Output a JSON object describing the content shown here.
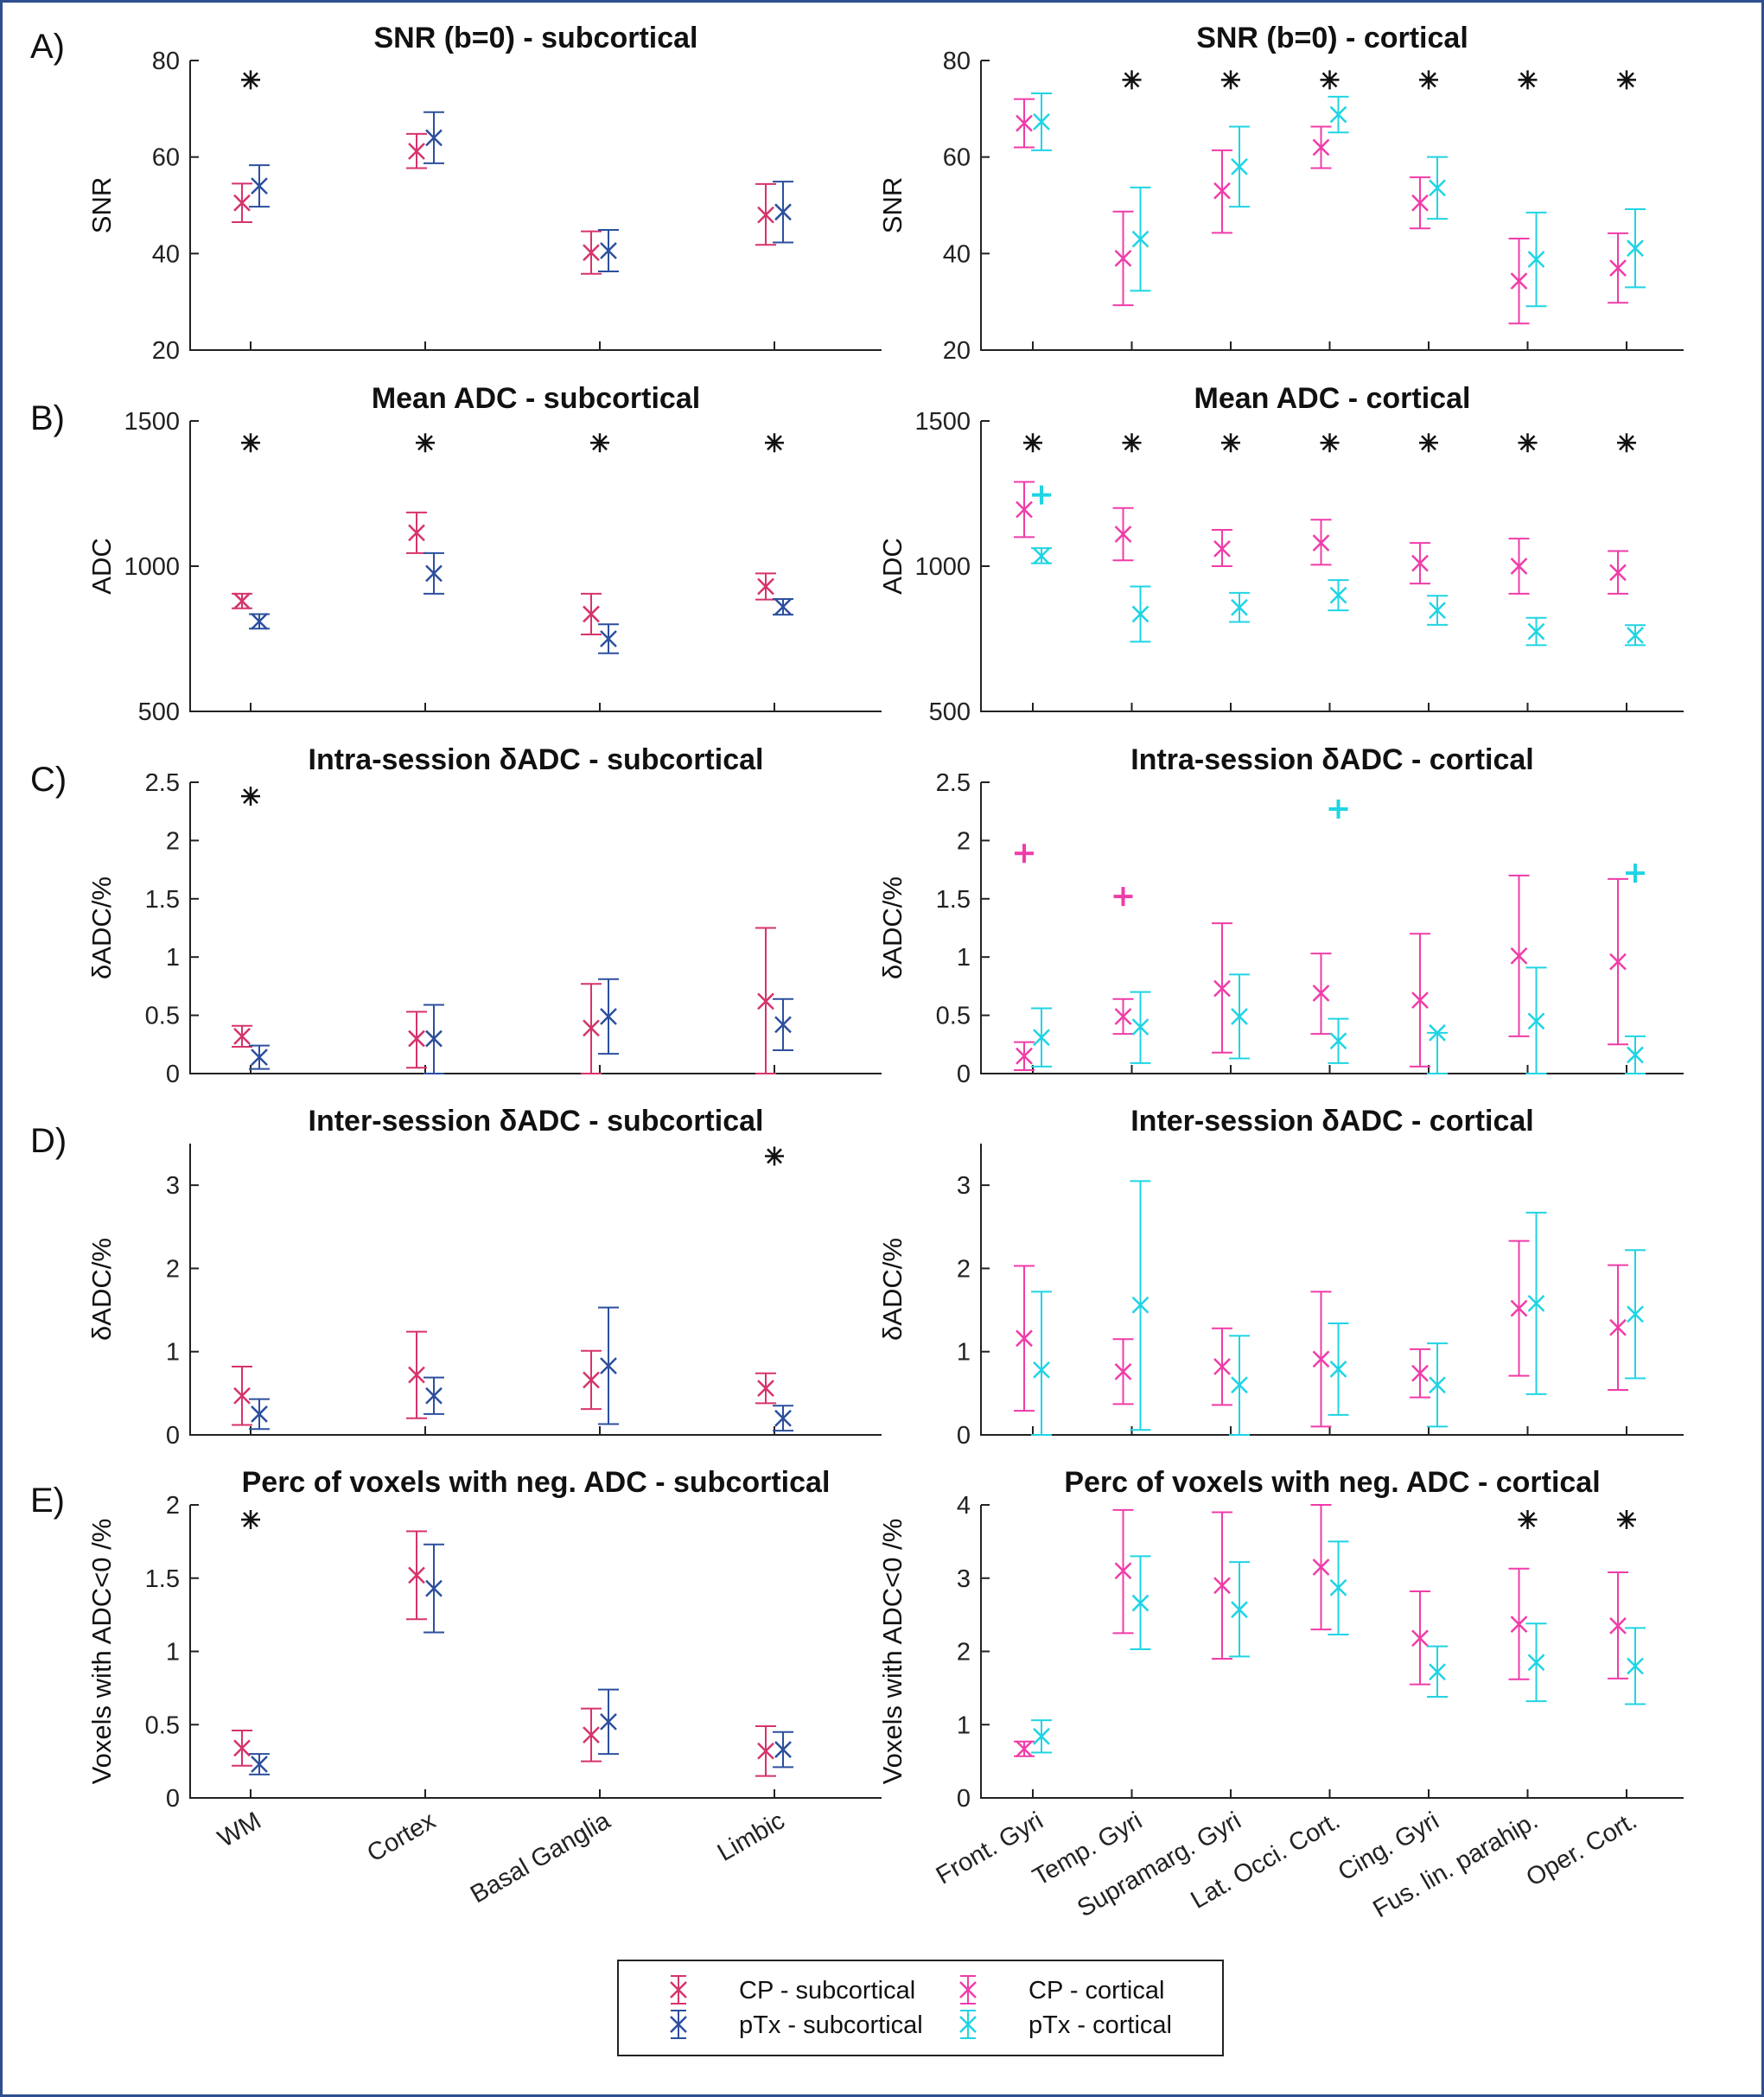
{
  "colors": {
    "cp_sub": "#d6336c",
    "ptx_sub": "#2c4f9e",
    "cp_cort": "#f03ca8",
    "ptx_cort": "#1fd4e4"
  },
  "panel_labels": [
    "A)",
    "B)",
    "C)",
    "D)",
    "E)"
  ],
  "legend": [
    {
      "label": "CP - subcortical",
      "color_key": "cp_sub"
    },
    {
      "label": "pTx - subcortical",
      "color_key": "ptx_sub"
    },
    {
      "label": "CP - cortical",
      "color_key": "cp_cort"
    },
    {
      "label": "pTx - cortical",
      "color_key": "ptx_cort"
    }
  ],
  "chart_data": [
    {
      "type": "errorbar",
      "title": "SNR (b=0) - subcortical",
      "ylabel": "SNR",
      "ylim": [
        20,
        80
      ],
      "yticks": [
        20,
        40,
        60,
        80
      ],
      "categories": [
        "WM",
        "Cortex",
        "Basal Ganglia",
        "Limbic"
      ],
      "series": [
        {
          "name": "CP - subcortical",
          "color_key": "cp_sub",
          "mean": [
            50.5,
            61.2,
            40.2,
            48
          ],
          "lower": [
            46.5,
            57.7,
            35.8,
            41.8
          ],
          "upper": [
            54.5,
            64.8,
            44.6,
            54.4
          ]
        },
        {
          "name": "pTx - subcortical",
          "color_key": "ptx_sub",
          "mean": [
            54,
            64,
            40.6,
            48.6
          ],
          "lower": [
            49.7,
            58.7,
            36.3,
            42.3
          ],
          "upper": [
            58.3,
            69.3,
            44.9,
            54.9
          ]
        }
      ],
      "significance": [
        76,
        null,
        null,
        null
      ],
      "outliers": []
    },
    {
      "type": "errorbar",
      "title": "SNR (b=0) - cortical",
      "ylabel": "SNR",
      "ylim": [
        20,
        80
      ],
      "yticks": [
        20,
        40,
        60,
        80
      ],
      "categories": [
        "Front. Gyri",
        "Temp. Gyri",
        "Supramarg. Gyri",
        "Lat. Occi. Cort.",
        "Cing. Gyri",
        "Fus. lin. parahip.",
        "Oper. Cort."
      ],
      "series": [
        {
          "name": "CP - cortical",
          "color_key": "cp_cort",
          "mean": [
            67,
            39,
            53,
            62,
            50.5,
            34.3,
            37
          ],
          "lower": [
            62,
            29.3,
            44.3,
            57.7,
            45.2,
            25.5,
            29.8
          ],
          "upper": [
            72,
            48.7,
            61.4,
            66.3,
            55.8,
            43.1,
            44.2
          ]
        },
        {
          "name": "pTx - cortical",
          "color_key": "ptx_cort",
          "mean": [
            67.3,
            43,
            58,
            68.8,
            53.6,
            38.8,
            41.1
          ],
          "lower": [
            61.4,
            32.3,
            49.7,
            65.1,
            47.2,
            29.1,
            33
          ],
          "upper": [
            73.2,
            53.7,
            66.3,
            72.5,
            60,
            48.5,
            49.2
          ]
        }
      ],
      "significance": [
        null,
        76,
        76,
        76,
        76,
        76,
        76
      ],
      "outliers": []
    },
    {
      "type": "errorbar",
      "title": "Mean ADC - subcortical",
      "ylabel": "ADC",
      "ylim": [
        500,
        1500
      ],
      "yticks": [
        500,
        1000,
        1500
      ],
      "categories": [
        "WM",
        "Cortex",
        "Basal Ganglia",
        "Limbic"
      ],
      "series": [
        {
          "name": "CP - subcortical",
          "color_key": "cp_sub",
          "mean": [
            880,
            1115,
            835,
            930
          ],
          "lower": [
            855,
            1045,
            765,
            885
          ],
          "upper": [
            905,
            1185,
            905,
            975
          ]
        },
        {
          "name": "pTx - subcortical",
          "color_key": "ptx_sub",
          "mean": [
            810,
            975,
            750,
            860
          ],
          "lower": [
            785,
            905,
            700,
            833
          ],
          "upper": [
            835,
            1045,
            800,
            887
          ]
        }
      ],
      "significance": [
        1425,
        1425,
        1425,
        1425
      ],
      "outliers": []
    },
    {
      "type": "errorbar",
      "title": "Mean ADC - cortical",
      "ylabel": "ADC",
      "ylim": [
        500,
        1500
      ],
      "yticks": [
        500,
        1000,
        1500
      ],
      "categories": [
        "Front. Gyri",
        "Temp. Gyri",
        "Supramarg. Gyri",
        "Lat. Occi. Cort.",
        "Cing. Gyri",
        "Fus. lin. parahip.",
        "Oper. Cort."
      ],
      "series": [
        {
          "name": "CP - cortical",
          "color_key": "cp_cort",
          "mean": [
            1195,
            1110,
            1060,
            1080,
            1010,
            1000,
            978
          ],
          "lower": [
            1100,
            1020,
            1000,
            1005,
            940,
            905,
            905
          ],
          "upper": [
            1290,
            1200,
            1125,
            1160,
            1080,
            1095,
            1052
          ]
        },
        {
          "name": "pTx - cortical",
          "color_key": "ptx_cort",
          "mean": [
            1035,
            835,
            858,
            900,
            848,
            775,
            762
          ],
          "lower": [
            1010,
            740,
            808,
            848,
            798,
            728,
            728
          ],
          "upper": [
            1062,
            930,
            908,
            952,
            898,
            822,
            797
          ]
        }
      ],
      "significance": [
        1425,
        1425,
        1425,
        1425,
        1425,
        1425,
        1425
      ],
      "outliers": [
        {
          "category": 0,
          "series": 1,
          "value": 1245
        }
      ]
    },
    {
      "type": "errorbar",
      "title": "Intra-session δADC - subcortical",
      "ylabel": "δADC/%",
      "ylim": [
        0,
        2.5
      ],
      "yticks": [
        0,
        0.5,
        1,
        1.5,
        2,
        2.5
      ],
      "categories": [
        "WM",
        "Cortex",
        "Basal Ganglia",
        "Limbic"
      ],
      "series": [
        {
          "name": "CP - subcortical",
          "color_key": "cp_sub",
          "mean": [
            0.32,
            0.3,
            0.39,
            0.62
          ],
          "lower": [
            0.23,
            0.05,
            0,
            0
          ],
          "upper": [
            0.41,
            0.53,
            0.77,
            1.25
          ]
        },
        {
          "name": "pTx - subcortical",
          "color_key": "ptx_sub",
          "mean": [
            0.14,
            0.3,
            0.49,
            0.42
          ],
          "lower": [
            0.04,
            0,
            0.17,
            0.2
          ],
          "upper": [
            0.24,
            0.59,
            0.81,
            0.64
          ]
        }
      ],
      "significance": [
        2.38,
        null,
        null,
        null
      ],
      "outliers": []
    },
    {
      "type": "errorbar",
      "title": "Intra-session δADC - cortical",
      "ylabel": "δADC/%",
      "ylim": [
        0,
        2.5
      ],
      "yticks": [
        0,
        0.5,
        1,
        1.5,
        2,
        2.5
      ],
      "categories": [
        "Front. Gyri",
        "Temp. Gyri",
        "Supramarg. Gyri",
        "Lat. Occi. Cort.",
        "Cing. Gyri",
        "Fus. lin. parahip.",
        "Oper. Cort."
      ],
      "series": [
        {
          "name": "CP - cortical",
          "color_key": "cp_cort",
          "mean": [
            0.15,
            0.49,
            0.73,
            0.69,
            0.63,
            1.01,
            0.96
          ],
          "lower": [
            0.03,
            0.34,
            0.18,
            0.34,
            0.06,
            0.32,
            0.25
          ],
          "upper": [
            0.27,
            0.64,
            1.29,
            1.03,
            1.2,
            1.7,
            1.67
          ]
        },
        {
          "name": "pTx - cortical",
          "color_key": "ptx_cort",
          "mean": [
            0.31,
            0.4,
            0.49,
            0.28,
            0.35,
            0.45,
            0.16
          ],
          "lower": [
            0.06,
            0.09,
            0.13,
            0.09,
            0,
            0,
            0
          ],
          "upper": [
            0.56,
            0.7,
            0.85,
            0.47,
            0.35,
            0.91,
            0.32
          ]
        }
      ],
      "significance": [
        null,
        null,
        null,
        null,
        null,
        null,
        null
      ],
      "outliers": [
        {
          "category": 0,
          "series": 0,
          "value": 1.89
        },
        {
          "category": 1,
          "series": 0,
          "value": 1.52
        },
        {
          "category": 3,
          "series": 1,
          "value": 2.27
        },
        {
          "category": 6,
          "series": 1,
          "value": 1.72
        }
      ]
    },
    {
      "type": "errorbar",
      "title": "Inter-session δADC - subcortical",
      "ylabel": "δADC/%",
      "ylim": [
        0,
        3.5
      ],
      "yticks": [
        0,
        1,
        2,
        3
      ],
      "categories": [
        "WM",
        "Cortex",
        "Basal Ganglia",
        "Limbic"
      ],
      "series": [
        {
          "name": "CP - subcortical",
          "color_key": "cp_sub",
          "mean": [
            0.47,
            0.72,
            0.66,
            0.56
          ],
          "lower": [
            0.12,
            0.2,
            0.31,
            0.38
          ],
          "upper": [
            0.82,
            1.24,
            1.01,
            0.74
          ]
        },
        {
          "name": "pTx - subcortical",
          "color_key": "ptx_sub",
          "mean": [
            0.25,
            0.47,
            0.83,
            0.2
          ],
          "lower": [
            0.07,
            0.25,
            0.13,
            0.05
          ],
          "upper": [
            0.43,
            0.69,
            1.53,
            0.35
          ]
        }
      ],
      "significance": [
        null,
        null,
        null,
        3.35
      ],
      "outliers": []
    },
    {
      "type": "errorbar",
      "title": "Inter-session δADC - cortical",
      "ylabel": "δADC/%",
      "ylim": [
        0,
        3.5
      ],
      "yticks": [
        0,
        1,
        2,
        3
      ],
      "categories": [
        "Front. Gyri",
        "Temp. Gyri",
        "Supramarg. Gyri",
        "Lat. Occi. Cort.",
        "Cing. Gyri",
        "Fus. lin. parahip.",
        "Oper. Cort."
      ],
      "series": [
        {
          "name": "CP - cortical",
          "color_key": "cp_cort",
          "mean": [
            1.16,
            0.76,
            0.82,
            0.91,
            0.74,
            1.52,
            1.29
          ],
          "lower": [
            0.29,
            0.37,
            0.36,
            0.1,
            0.45,
            0.71,
            0.54
          ],
          "upper": [
            2.03,
            1.15,
            1.28,
            1.72,
            1.03,
            2.33,
            2.04
          ]
        },
        {
          "name": "pTx - cortical",
          "color_key": "ptx_cort",
          "mean": [
            0.78,
            1.56,
            0.6,
            0.79,
            0.6,
            1.58,
            1.45
          ],
          "lower": [
            0,
            0.06,
            0,
            0.24,
            0.1,
            0.49,
            0.68
          ],
          "upper": [
            1.72,
            3.05,
            1.19,
            1.34,
            1.1,
            2.67,
            2.22
          ]
        }
      ],
      "significance": [
        null,
        null,
        null,
        null,
        null,
        null,
        null
      ],
      "outliers": []
    },
    {
      "type": "errorbar",
      "title": "Perc of voxels with neg. ADC - subcortical",
      "ylabel": "Voxels with ADC<0 /%",
      "ylim": [
        0,
        2
      ],
      "yticks": [
        0,
        0.5,
        1,
        1.5,
        2
      ],
      "categories": [
        "WM",
        "Cortex",
        "Basal Ganglia",
        "Limbic"
      ],
      "series": [
        {
          "name": "CP - subcortical",
          "color_key": "cp_sub",
          "mean": [
            0.34,
            1.52,
            0.43,
            0.32
          ],
          "lower": [
            0.22,
            1.22,
            0.25,
            0.15
          ],
          "upper": [
            0.46,
            1.82,
            0.61,
            0.49
          ]
        },
        {
          "name": "pTx - subcortical",
          "color_key": "ptx_sub",
          "mean": [
            0.23,
            1.43,
            0.52,
            0.33
          ],
          "lower": [
            0.16,
            1.13,
            0.3,
            0.21
          ],
          "upper": [
            0.3,
            1.73,
            0.74,
            0.45
          ]
        }
      ],
      "significance": [
        1.9,
        null,
        null,
        null
      ],
      "outliers": []
    },
    {
      "type": "errorbar",
      "title": "Perc of voxels with neg. ADC - cortical",
      "ylabel": "Voxels with ADC<0 /%",
      "ylim": [
        0,
        4
      ],
      "yticks": [
        0,
        1,
        2,
        3,
        4
      ],
      "categories": [
        "Front. Gyri",
        "Temp. Gyri",
        "Supramarg. Gyri",
        "Lat. Occi. Cort.",
        "Cing. Gyri",
        "Fus. lin. parahip.",
        "Oper. Cort."
      ],
      "series": [
        {
          "name": "CP - cortical",
          "color_key": "cp_cort",
          "mean": [
            0.67,
            3.1,
            2.9,
            3.15,
            2.18,
            2.37,
            2.35
          ],
          "lower": [
            0.57,
            2.25,
            1.9,
            2.3,
            1.55,
            1.62,
            1.63
          ],
          "upper": [
            0.77,
            3.93,
            3.9,
            4.0,
            2.82,
            3.13,
            3.08
          ]
        },
        {
          "name": "pTx - cortical",
          "color_key": "ptx_cort",
          "mean": [
            0.84,
            2.66,
            2.57,
            2.87,
            1.72,
            1.85,
            1.8
          ],
          "lower": [
            0.62,
            2.03,
            1.93,
            2.23,
            1.38,
            1.32,
            1.28
          ],
          "upper": [
            1.06,
            3.3,
            3.22,
            3.5,
            2.07,
            2.38,
            2.32
          ]
        }
      ],
      "significance": [
        null,
        null,
        null,
        null,
        null,
        3.8,
        3.8
      ],
      "outliers": []
    }
  ]
}
